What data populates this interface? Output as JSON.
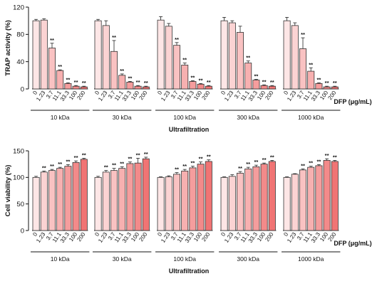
{
  "chart_data": [
    {
      "type": "bar",
      "panel": "top",
      "ylabel": "TRAP activity (%)",
      "ylim": [
        0,
        120
      ],
      "yticks": [
        0,
        40,
        80,
        120
      ],
      "concentrations": [
        "0",
        "1.23",
        "3.7",
        "11.1",
        "33.3",
        "100",
        "200"
      ],
      "concentration_unit": "DFP (μg/mL)",
      "xlabel": "Ultrafiltration",
      "colors": [
        "#fde6e6",
        "#fbd3d3",
        "#f9c2c2",
        "#f7b0b0",
        "#f59d9d",
        "#f38a8a",
        "#f07474"
      ],
      "groups": [
        {
          "name": "10 kDa",
          "values": [
            100,
            101,
            60,
            27,
            8,
            4,
            3
          ],
          "errors": [
            2,
            2,
            7,
            1,
            1,
            1,
            1
          ],
          "sig": [
            "",
            "",
            "**",
            "**",
            "**",
            "**",
            "**"
          ]
        },
        {
          "name": "30 kDa",
          "values": [
            100,
            93,
            55,
            20,
            10,
            4,
            3
          ],
          "errors": [
            2,
            7,
            16,
            2,
            1,
            1,
            1
          ],
          "sig": [
            "",
            "",
            "**",
            "**",
            "**",
            "**",
            "**"
          ]
        },
        {
          "name": "100 kDa",
          "values": [
            101,
            92,
            64,
            35,
            11,
            7,
            4
          ],
          "errors": [
            5,
            4,
            4,
            3,
            1,
            1,
            1
          ],
          "sig": [
            "",
            "",
            "**",
            "**",
            "**",
            "**",
            "**"
          ]
        },
        {
          "name": "300 kDa",
          "values": [
            100,
            97,
            83,
            38,
            13,
            5,
            4
          ],
          "errors": [
            5,
            3,
            9,
            3,
            1,
            1,
            1
          ],
          "sig": [
            "",
            "",
            "",
            "**",
            "**",
            "**",
            "**"
          ]
        },
        {
          "name": "1000 kDa",
          "values": [
            100,
            93,
            59,
            26,
            8,
            3,
            3
          ],
          "errors": [
            5,
            4,
            16,
            5,
            1,
            1,
            1
          ],
          "sig": [
            "",
            "",
            "**",
            "**",
            "**",
            "**",
            "**"
          ]
        }
      ]
    },
    {
      "type": "bar",
      "panel": "bottom",
      "ylabel": "Cell viability (%)",
      "ylim": [
        0,
        150
      ],
      "yticks": [
        0,
        50,
        100,
        150
      ],
      "concentrations": [
        "0",
        "1.23",
        "3.7",
        "11.1",
        "33.3",
        "100",
        "200"
      ],
      "concentration_unit": "DFP (μg/mL)",
      "xlabel": "Ultrafiltration",
      "colors": [
        "#fde6e6",
        "#fbd3d3",
        "#f9c2c2",
        "#f7b0b0",
        "#f59d9d",
        "#f38a8a",
        "#f07474"
      ],
      "groups": [
        {
          "name": "10 kDa",
          "values": [
            100,
            110,
            113,
            117,
            121,
            128,
            134
          ],
          "errors": [
            2,
            2,
            2,
            2,
            3,
            3,
            2
          ],
          "sig": [
            "",
            "**",
            "**",
            "**",
            "**",
            "**",
            "**"
          ]
        },
        {
          "name": "30 kDa",
          "values": [
            100,
            110,
            113,
            117,
            126,
            127,
            135
          ],
          "errors": [
            2,
            3,
            4,
            3,
            3,
            9,
            3
          ],
          "sig": [
            "",
            "**",
            "**",
            "**",
            "**",
            "**",
            "**"
          ]
        },
        {
          "name": "100 kDa",
          "values": [
            100,
            101,
            106,
            112,
            118,
            125,
            130
          ],
          "errors": [
            1,
            2,
            3,
            3,
            3,
            4,
            3
          ],
          "sig": [
            "",
            "",
            "**",
            "**",
            "**",
            "**",
            "**"
          ]
        },
        {
          "name": "300 kDa",
          "values": [
            100,
            102,
            108,
            116,
            120,
            125,
            130
          ],
          "errors": [
            1,
            3,
            3,
            3,
            3,
            2,
            2
          ],
          "sig": [
            "",
            "",
            "**",
            "**",
            "**",
            "**",
            "**"
          ]
        },
        {
          "name": "1000 kDa",
          "values": [
            100,
            106,
            114,
            119,
            122,
            132,
            130
          ],
          "errors": [
            1,
            1,
            2,
            2,
            2,
            3,
            2
          ],
          "sig": [
            "",
            "",
            "**",
            "**",
            "**",
            "**",
            "**"
          ]
        }
      ]
    }
  ]
}
